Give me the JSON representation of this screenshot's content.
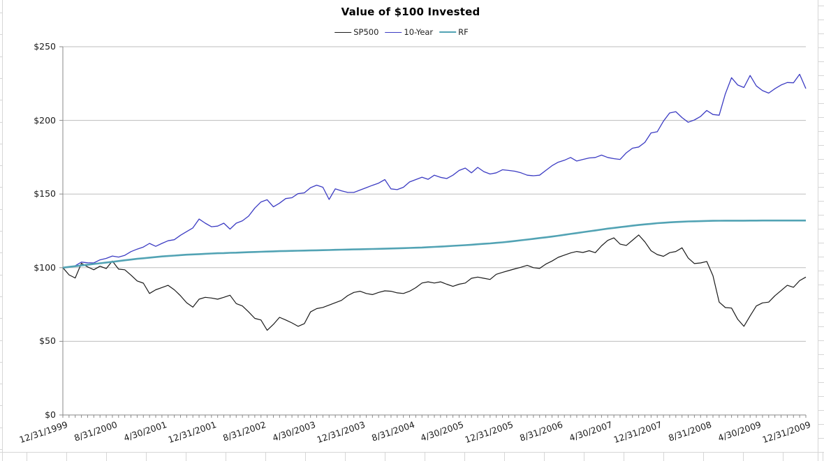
{
  "chart": {
    "title": "Value of $100 Invested",
    "legend": [
      {
        "label": "SP500",
        "color": "#1a1a1a",
        "weight": 1.2
      },
      {
        "label": "10-Year",
        "color": "#3c3cc3",
        "weight": 1.3
      },
      {
        "label": "RF",
        "color": "#52a3b4",
        "weight": 2.6
      }
    ],
    "y_axis": {
      "tick_labels": [
        "$0",
        "$50",
        "$100",
        "$150",
        "$200",
        "$250"
      ],
      "min": 0,
      "max": 250,
      "step": 50
    },
    "x_axis": {
      "label_every_n_months": 8,
      "months_total": 121
    },
    "colors": {
      "gridline": "#bdbdbd",
      "axis": "#8a8a8a",
      "text": "#1a1a1a"
    }
  },
  "chart_data": {
    "type": "line",
    "title": "Value of $100 Invested",
    "x_start": "12/31/1999",
    "x_end": "12/31/2009",
    "x_frequency": "monthly",
    "x_tick_labels": [
      "12/31/1999",
      "8/31/2000",
      "4/30/2001",
      "12/31/2001",
      "8/31/2002",
      "4/30/2003",
      "12/31/2003",
      "8/31/2004",
      "4/30/2005",
      "12/31/2005",
      "8/31/2006",
      "4/30/2007",
      "12/31/2007",
      "8/31/2008",
      "4/30/2009",
      "12/31/2009"
    ],
    "ylim": [
      0,
      250
    ],
    "y_tick_format": "$",
    "grid": "horizontal",
    "legend_position": "top",
    "series": [
      {
        "name": "SP500",
        "color": "#1a1a1a",
        "width": 1.2,
        "values": [
          100,
          95.1,
          93,
          103,
          100.5,
          98.6,
          101,
          99.4,
          104.5,
          99,
          98.6,
          95,
          91,
          89.5,
          82.5,
          85,
          86.5,
          88,
          85,
          80.9,
          76.2,
          73.2,
          78.6,
          79.9,
          79.4,
          78.6,
          79.9,
          81.3,
          75.6,
          74,
          70,
          65.6,
          64.5,
          57.5,
          61.5,
          66.3,
          64.5,
          62.5,
          60.2,
          62,
          70,
          72.2,
          73,
          74.6,
          76.2,
          77.8,
          81,
          83.2,
          84,
          82.5,
          81.7,
          83.2,
          84.3,
          84,
          82.9,
          82.5,
          84,
          86.4,
          89.6,
          90.4,
          89.6,
          90.4,
          88.8,
          87.3,
          88.8,
          89.6,
          92.8,
          93.6,
          92.8,
          92,
          95.5,
          96.8,
          98,
          99.2,
          100.3,
          101.6,
          100,
          99.5,
          102.4,
          104.5,
          107,
          108.5,
          110,
          111,
          110.3,
          111.5,
          110.2,
          114.8,
          118.5,
          120.2,
          116,
          115.1,
          118.6,
          122.2,
          117.5,
          111.5,
          108.9,
          107.7,
          110.2,
          111,
          113.5,
          106.6,
          102.8,
          103.2,
          104.2,
          94.5,
          76.6,
          72.9,
          72.6,
          64.9,
          60.2,
          67.3,
          74,
          76.1,
          76.6,
          80.9,
          84.4,
          88,
          86.7,
          91.2,
          93.6
        ]
      },
      {
        "name": "10-Year",
        "color": "#3c3cc3",
        "width": 1.3,
        "values": [
          100,
          100.2,
          101.3,
          103.8,
          103.3,
          103.2,
          105.3,
          106.3,
          107.9,
          107.2,
          108.4,
          110.9,
          112.6,
          114,
          116.5,
          114.5,
          116.5,
          118.3,
          119,
          122,
          124.5,
          127,
          133,
          130.2,
          127.8,
          128.2,
          130.2,
          126.2,
          130.2,
          131.8,
          135,
          140.5,
          144.6,
          146.1,
          141.3,
          143.8,
          146.9,
          147.5,
          150.3,
          150.8,
          154.3,
          156,
          154.6,
          146.3,
          153.5,
          152.2,
          151.1,
          151.1,
          152.7,
          154.3,
          155.9,
          157.4,
          159.8,
          153.5,
          153,
          154.6,
          158.2,
          159.8,
          161.4,
          160,
          162.8,
          161.3,
          160.5,
          162.8,
          166,
          167.6,
          164.4,
          168.1,
          165.2,
          163.6,
          164.4,
          166.5,
          166,
          165.5,
          164.4,
          162.8,
          162.4,
          162.8,
          166,
          169.2,
          171.6,
          172.9,
          174.8,
          172.4,
          173.5,
          174.5,
          174.8,
          176.4,
          174.8,
          174,
          173.5,
          178,
          181.1,
          181.9,
          185.1,
          191.5,
          192.3,
          199.5,
          205,
          205.9,
          201.9,
          198.7,
          200.3,
          202.7,
          206.7,
          204,
          203.5,
          218,
          229,
          224,
          222.3,
          230.5,
          223.4,
          220.2,
          218.5,
          221.5,
          224,
          225.7,
          225.5,
          231.3,
          221.6
        ]
      },
      {
        "name": "RF",
        "color": "#52a3b4",
        "width": 2.6,
        "values": [
          100,
          100.5,
          101,
          101.5,
          102,
          102.5,
          103,
          103.5,
          104,
          104.5,
          105,
          105.5,
          106,
          106.4,
          106.8,
          107.2,
          107.6,
          107.9,
          108.2,
          108.5,
          108.8,
          109,
          109.2,
          109.4,
          109.6,
          109.8,
          109.9,
          110.1,
          110.2,
          110.35,
          110.5,
          110.65,
          110.8,
          110.95,
          111.1,
          111.2,
          111.3,
          111.4,
          111.5,
          111.6,
          111.7,
          111.8,
          111.9,
          112,
          112.1,
          112.2,
          112.3,
          112.4,
          112.5,
          112.6,
          112.7,
          112.8,
          112.9,
          113,
          113.1,
          113.25,
          113.4,
          113.55,
          113.7,
          113.9,
          114.1,
          114.3,
          114.55,
          114.8,
          115.05,
          115.3,
          115.6,
          115.9,
          116.2,
          116.5,
          116.85,
          117.2,
          117.6,
          118.1,
          118.6,
          119.1,
          119.6,
          120.1,
          120.6,
          121.1,
          121.7,
          122.3,
          122.9,
          123.5,
          124.1,
          124.7,
          125.3,
          125.9,
          126.5,
          127,
          127.5,
          128,
          128.5,
          129,
          129.4,
          129.8,
          130.2,
          130.5,
          130.8,
          131,
          131.2,
          131.4,
          131.5,
          131.6,
          131.7,
          131.8,
          131.85,
          131.9,
          131.9,
          131.9,
          131.9,
          131.95,
          131.95,
          132,
          132,
          132,
          132,
          132,
          132,
          132,
          132
        ]
      }
    ]
  }
}
